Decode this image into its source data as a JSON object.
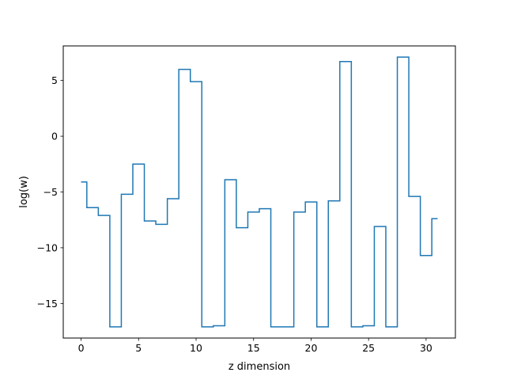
{
  "chart_data": {
    "type": "line",
    "drawstyle": "steps-mid",
    "title": "",
    "xlabel": "z dimension",
    "ylabel": "log(w)",
    "xlim": [
      -1.55,
      32.55
    ],
    "ylim": [
      -18.1,
      8.1
    ],
    "xticks": [
      0,
      5,
      10,
      15,
      20,
      25,
      30
    ],
    "yticks": [
      -15,
      -10,
      -5,
      0,
      5
    ],
    "xtick_labels": [
      "0",
      "5",
      "10",
      "15",
      "20",
      "25",
      "30"
    ],
    "ytick_labels": [
      "−15",
      "−10",
      "−5",
      "0",
      "5"
    ],
    "grid": false,
    "legend": "none",
    "colors": {
      "series": "#1f77b4",
      "axes": "#000000",
      "background": "#ffffff"
    },
    "series": [
      {
        "x": [
          0,
          1,
          2,
          3,
          4,
          5,
          6,
          7,
          8,
          9,
          10,
          11,
          12,
          13,
          14,
          15,
          16,
          17,
          18,
          19,
          20,
          21,
          22,
          23,
          24,
          25,
          26,
          27,
          28,
          29,
          30,
          31
        ],
        "values": [
          -4.1,
          -6.4,
          -7.1,
          -17.1,
          -5.2,
          -2.5,
          -7.6,
          -7.9,
          -5.6,
          6.0,
          4.9,
          -17.1,
          -17.0,
          -3.9,
          -8.2,
          -6.8,
          -6.5,
          -17.1,
          -17.1,
          -6.8,
          -5.9,
          -17.1,
          -5.8,
          6.7,
          -17.1,
          -17.0,
          -8.1,
          -17.1,
          7.1,
          -5.4,
          -10.7,
          -7.4
        ]
      }
    ]
  }
}
